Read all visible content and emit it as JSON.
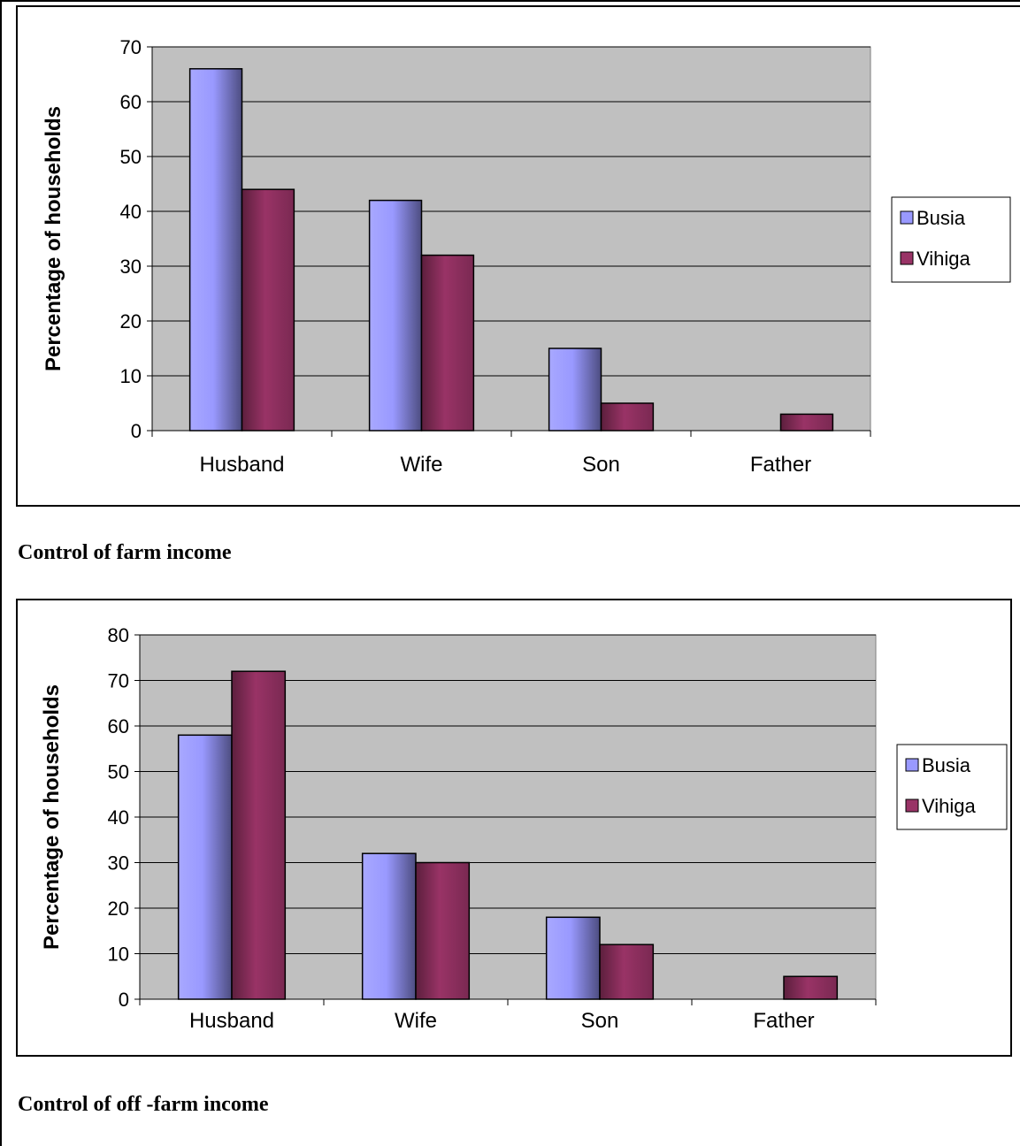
{
  "captions": {
    "farm": "Control of farm income",
    "off_farm": "Control of off -farm income"
  },
  "colors": {
    "plot_bg": "#c0c0c0",
    "busia": "#9999ff",
    "vihiga": "#993366"
  },
  "chart_data": [
    {
      "type": "bar",
      "title": "",
      "xlabel": "",
      "ylabel": "Percentage of households",
      "categories": [
        "Husband",
        "Wife",
        "Son",
        "Father"
      ],
      "series": [
        {
          "name": "Busia",
          "values": [
            66,
            42,
            15,
            0
          ]
        },
        {
          "name": "Vihiga",
          "values": [
            44,
            32,
            5,
            3
          ]
        }
      ],
      "ylim": [
        0,
        70
      ],
      "yticks": [
        "0",
        "10",
        "20",
        "30",
        "40",
        "50",
        "60",
        "70"
      ],
      "grid": true,
      "legend": "right"
    },
    {
      "type": "bar",
      "title": "",
      "xlabel": "",
      "ylabel": "Percentage of households",
      "categories": [
        "Husband",
        "Wife",
        "Son",
        "Father"
      ],
      "series": [
        {
          "name": "Busia",
          "values": [
            58,
            32,
            18,
            0
          ]
        },
        {
          "name": "Vihiga",
          "values": [
            72,
            30,
            12,
            5
          ]
        }
      ],
      "ylim": [
        0,
        80
      ],
      "yticks": [
        "0",
        "10",
        "20",
        "30",
        "40",
        "50",
        "60",
        "70",
        "80"
      ],
      "grid": true,
      "legend": "right"
    }
  ]
}
